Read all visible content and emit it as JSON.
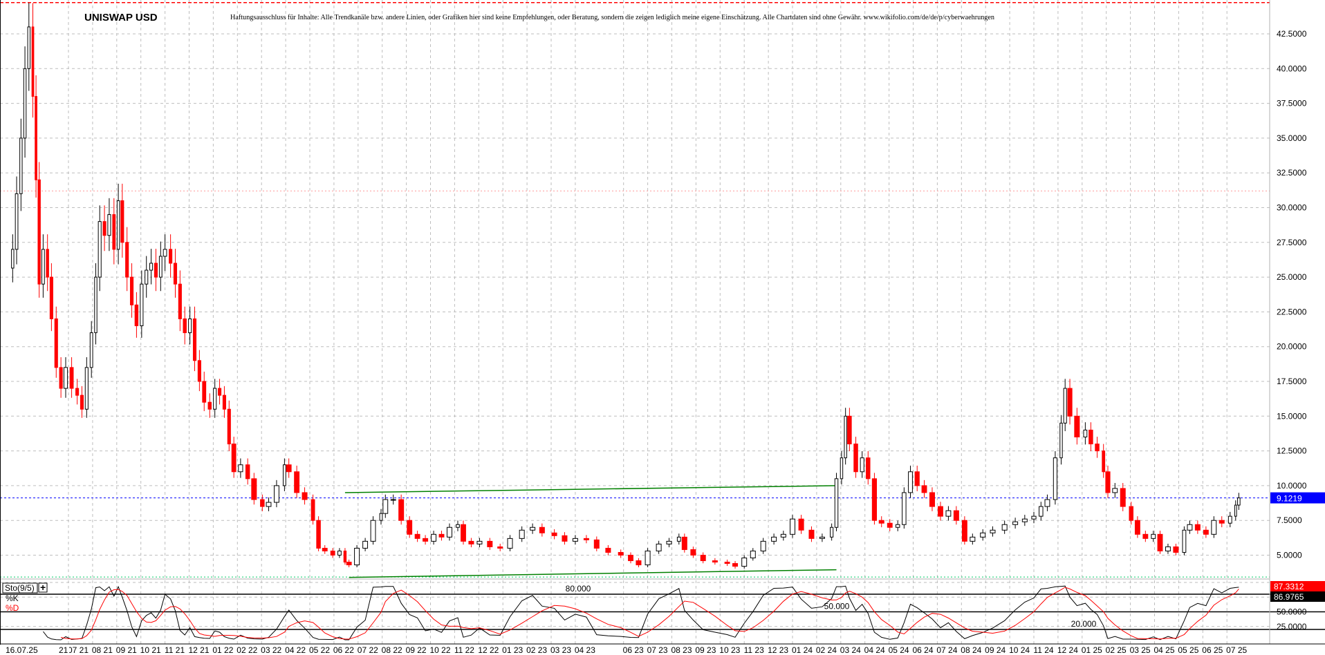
{
  "header": {
    "title": "UNISWAP USD",
    "disclaimer": "Haftungsausschluss für Inhalte: Alle Trendkanäle bzw. andere Linien, oder Grafiken hier sind keine Empfehlungen, oder Beratung, sondern die zeigen lediglich meine eigene Einschätzung. Alle Chartdaten sind ohne Gewähr.  www.wikifolio.com/de/de/p/cyberwaehrungen"
  },
  "x_axis": {
    "current_date_label": "16.07.25",
    "partial_label": "21",
    "month_labels": [
      "07 21",
      "08 21",
      "09 21",
      "10 21",
      "11 21",
      "12 21",
      "01 22",
      "02 22",
      "03 22",
      "04 22",
      "05 22",
      "06 22",
      "07 22",
      "08 22",
      "09 22",
      "10 22",
      "11 22",
      "12 22",
      "01 23",
      "02 23",
      "03 23",
      "04 23",
      "06 23",
      "07 23",
      "08 23",
      "09 23",
      "10 23",
      "11 23",
      "12 23",
      "01 24",
      "02 24",
      "03 24",
      "04 24",
      "05 24",
      "06 24",
      "07 24",
      "08 24",
      "09 24",
      "10 24",
      "11 24",
      "12 24",
      "01 25",
      "02 25",
      "03 25",
      "04 25",
      "05 25",
      "06 25",
      "07 25"
    ]
  },
  "chart_data": [
    {
      "type": "candlestick",
      "title": "UNISWAP USD",
      "y_ticks": [
        5,
        7.5,
        10,
        12.5,
        15,
        17.5,
        20,
        22.5,
        25,
        27.5,
        30,
        32.5,
        35,
        37.5,
        40,
        42.5
      ],
      "ylim": [
        3.3,
        44.9
      ],
      "grid": true,
      "colors": {
        "up": "#000000",
        "down": "#ff0000",
        "current": "#0000ff",
        "trendline": "#008000"
      },
      "current_price": 9.1219,
      "current_price_label": "9.1219",
      "horizontal_lines": [
        {
          "value": 44.75,
          "color": "#ff0000",
          "style": "dashed"
        },
        {
          "value": 31.2,
          "color": "#ff9999",
          "style": "dotted"
        },
        {
          "value": 3.43,
          "color": "#00cc66",
          "style": "dotted"
        }
      ],
      "trendlines": [
        {
          "from": [
            "2022-06-15",
            9.5
          ],
          "to": [
            "2024-02-26",
            10.0
          ]
        },
        {
          "from": [
            "2022-06-20",
            3.4
          ],
          "to": [
            "2024-02-26",
            3.95
          ]
        }
      ],
      "closes": [
        [
          "2021-04-22",
          27.0
        ],
        [
          "2021-04-27",
          31.0
        ],
        [
          "2021-05-02",
          35.0
        ],
        [
          "2021-05-07",
          40.0
        ],
        [
          "2021-05-12",
          43.0
        ],
        [
          "2021-05-17",
          38.0
        ],
        [
          "2021-05-21",
          32.0
        ],
        [
          "2021-05-25",
          24.5
        ],
        [
          "2021-05-30",
          27.0
        ],
        [
          "2021-06-05",
          25.0
        ],
        [
          "2021-06-10",
          22.0
        ],
        [
          "2021-06-16",
          18.5
        ],
        [
          "2021-06-22",
          17.0
        ],
        [
          "2021-06-28",
          18.5
        ],
        [
          "2021-07-05",
          17.0
        ],
        [
          "2021-07-12",
          16.5
        ],
        [
          "2021-07-18",
          15.5
        ],
        [
          "2021-07-24",
          18.5
        ],
        [
          "2021-07-30",
          21.0
        ],
        [
          "2021-08-05",
          25.0
        ],
        [
          "2021-08-10",
          29.0
        ],
        [
          "2021-08-16",
          28.0
        ],
        [
          "2021-08-22",
          29.5
        ],
        [
          "2021-08-28",
          27.0
        ],
        [
          "2021-09-03",
          30.5
        ],
        [
          "2021-09-08",
          27.5
        ],
        [
          "2021-09-14",
          25.0
        ],
        [
          "2021-09-20",
          23.0
        ],
        [
          "2021-09-26",
          21.5
        ],
        [
          "2021-10-02",
          24.5
        ],
        [
          "2021-10-08",
          25.5
        ],
        [
          "2021-10-14",
          26.0
        ],
        [
          "2021-10-20",
          25.0
        ],
        [
          "2021-10-26",
          26.5
        ],
        [
          "2021-11-01",
          27.0
        ],
        [
          "2021-11-08",
          26.0
        ],
        [
          "2021-11-14",
          24.5
        ],
        [
          "2021-11-20",
          22.0
        ],
        [
          "2021-11-26",
          21.0
        ],
        [
          "2021-12-02",
          22.0
        ],
        [
          "2021-12-08",
          19.0
        ],
        [
          "2021-12-14",
          17.5
        ],
        [
          "2021-12-20",
          16.0
        ],
        [
          "2021-12-27",
          15.5
        ],
        [
          "2022-01-03",
          17.0
        ],
        [
          "2022-01-09",
          16.5
        ],
        [
          "2022-01-15",
          15.5
        ],
        [
          "2022-01-21",
          13.0
        ],
        [
          "2022-01-27",
          11.0
        ],
        [
          "2022-02-05",
          11.5
        ],
        [
          "2022-02-14",
          10.5
        ],
        [
          "2022-02-22",
          9.0
        ],
        [
          "2022-03-02",
          8.5
        ],
        [
          "2022-03-10",
          8.8
        ],
        [
          "2022-03-20",
          10.0
        ],
        [
          "2022-03-30",
          11.5
        ],
        [
          "2022-04-05",
          11.0
        ],
        [
          "2022-04-15",
          9.5
        ],
        [
          "2022-04-25",
          9.0
        ],
        [
          "2022-05-05",
          7.5
        ],
        [
          "2022-05-12",
          5.5
        ],
        [
          "2022-05-20",
          5.3
        ],
        [
          "2022-05-30",
          5.0
        ],
        [
          "2022-06-08",
          5.3
        ],
        [
          "2022-06-15",
          4.5
        ],
        [
          "2022-06-20",
          4.3
        ],
        [
          "2022-06-30",
          5.5
        ],
        [
          "2022-07-10",
          6.0
        ],
        [
          "2022-07-20",
          7.5
        ],
        [
          "2022-07-30",
          8.0
        ],
        [
          "2022-08-05",
          9.0
        ],
        [
          "2022-08-15",
          9.0
        ],
        [
          "2022-08-25",
          7.5
        ],
        [
          "2022-09-05",
          6.5
        ],
        [
          "2022-09-15",
          6.2
        ],
        [
          "2022-09-25",
          6.0
        ],
        [
          "2022-10-05",
          6.5
        ],
        [
          "2022-10-15",
          6.3
        ],
        [
          "2022-10-25",
          7.0
        ],
        [
          "2022-11-05",
          7.2
        ],
        [
          "2022-11-12",
          6.0
        ],
        [
          "2022-11-22",
          5.8
        ],
        [
          "2022-12-02",
          6.0
        ],
        [
          "2022-12-15",
          5.6
        ],
        [
          "2022-12-28",
          5.5
        ],
        [
          "2023-01-10",
          6.2
        ],
        [
          "2023-01-25",
          6.8
        ],
        [
          "2023-02-08",
          7.0
        ],
        [
          "2023-02-20",
          6.6
        ],
        [
          "2023-03-05",
          6.4
        ],
        [
          "2023-03-18",
          6.0
        ],
        [
          "2023-04-01",
          6.2
        ],
        [
          "2023-04-15",
          6.1
        ],
        [
          "2023-04-28",
          5.5
        ],
        [
          "2023-05-12",
          5.2
        ],
        [
          "2023-05-28",
          5.0
        ],
        [
          "2023-06-10",
          4.6
        ],
        [
          "2023-06-20",
          4.3
        ],
        [
          "2023-07-01",
          5.3
        ],
        [
          "2023-07-15",
          5.8
        ],
        [
          "2023-07-28",
          6.0
        ],
        [
          "2023-08-10",
          6.3
        ],
        [
          "2023-08-17",
          5.4
        ],
        [
          "2023-08-28",
          5.0
        ],
        [
          "2023-09-10",
          4.6
        ],
        [
          "2023-09-25",
          4.5
        ],
        [
          "2023-10-10",
          4.4
        ],
        [
          "2023-10-20",
          4.2
        ],
        [
          "2023-11-01",
          4.8
        ],
        [
          "2023-11-12",
          5.3
        ],
        [
          "2023-11-25",
          6.0
        ],
        [
          "2023-12-08",
          6.3
        ],
        [
          "2023-12-20",
          6.5
        ],
        [
          "2024-01-01",
          7.6
        ],
        [
          "2024-01-12",
          6.8
        ],
        [
          "2024-01-25",
          6.2
        ],
        [
          "2024-02-08",
          6.3
        ],
        [
          "2024-02-20",
          7.0
        ],
        [
          "2024-02-26",
          10.5
        ],
        [
          "2024-03-02",
          12.0
        ],
        [
          "2024-03-07",
          15.0
        ],
        [
          "2024-03-12",
          13.0
        ],
        [
          "2024-03-20",
          11.0
        ],
        [
          "2024-03-28",
          12.0
        ],
        [
          "2024-04-05",
          10.5
        ],
        [
          "2024-04-13",
          7.5
        ],
        [
          "2024-04-22",
          7.3
        ],
        [
          "2024-05-02",
          7.0
        ],
        [
          "2024-05-12",
          7.2
        ],
        [
          "2024-05-20",
          9.5
        ],
        [
          "2024-05-28",
          11.0
        ],
        [
          "2024-06-06",
          10.0
        ],
        [
          "2024-06-15",
          9.5
        ],
        [
          "2024-06-25",
          8.5
        ],
        [
          "2024-07-05",
          7.8
        ],
        [
          "2024-07-15",
          8.2
        ],
        [
          "2024-07-25",
          7.5
        ],
        [
          "2024-08-05",
          6.0
        ],
        [
          "2024-08-15",
          6.3
        ],
        [
          "2024-08-28",
          6.6
        ],
        [
          "2024-09-10",
          6.8
        ],
        [
          "2024-09-25",
          7.2
        ],
        [
          "2024-10-08",
          7.4
        ],
        [
          "2024-10-20",
          7.6
        ],
        [
          "2024-11-01",
          7.8
        ],
        [
          "2024-11-10",
          8.5
        ],
        [
          "2024-11-18",
          9.0
        ],
        [
          "2024-11-28",
          12.0
        ],
        [
          "2024-12-05",
          14.5
        ],
        [
          "2024-12-10",
          17.0
        ],
        [
          "2024-12-16",
          15.0
        ],
        [
          "2024-12-25",
          13.5
        ],
        [
          "2025-01-05",
          14.0
        ],
        [
          "2025-01-12",
          13.0
        ],
        [
          "2025-01-20",
          12.5
        ],
        [
          "2025-01-28",
          11.0
        ],
        [
          "2025-02-03",
          9.5
        ],
        [
          "2025-02-12",
          9.8
        ],
        [
          "2025-02-22",
          8.5
        ],
        [
          "2025-03-02",
          7.5
        ],
        [
          "2025-03-10",
          6.5
        ],
        [
          "2025-03-20",
          6.2
        ],
        [
          "2025-03-30",
          6.5
        ],
        [
          "2025-04-08",
          5.3
        ],
        [
          "2025-04-18",
          5.6
        ],
        [
          "2025-04-28",
          5.2
        ],
        [
          "2025-05-08",
          6.8
        ],
        [
          "2025-05-15",
          7.2
        ],
        [
          "2025-05-25",
          6.8
        ],
        [
          "2025-06-05",
          6.5
        ],
        [
          "2025-06-15",
          7.5
        ],
        [
          "2025-06-25",
          7.3
        ],
        [
          "2025-07-05",
          7.8
        ],
        [
          "2025-07-12",
          8.6
        ],
        [
          "2025-07-16",
          9.12
        ]
      ]
    },
    {
      "type": "line",
      "indicator_label": "Sto(9/5)",
      "add_button": "+",
      "series": [
        {
          "name": "%K",
          "color": "#000000",
          "last_value_label": "86.9765"
        },
        {
          "name": "%D",
          "color": "#ff0000",
          "last_value_label": "87.3312"
        }
      ],
      "levels": [
        {
          "value": 80,
          "label": "80.000"
        },
        {
          "value": 50,
          "label": "50.000"
        },
        {
          "value": 20,
          "label": "20.000"
        }
      ],
      "y_ticks": [
        {
          "value": 50,
          "label": "50.0000"
        },
        {
          "value": 25,
          "label": "25.0000"
        }
      ],
      "ylim": [
        0,
        100
      ]
    }
  ]
}
